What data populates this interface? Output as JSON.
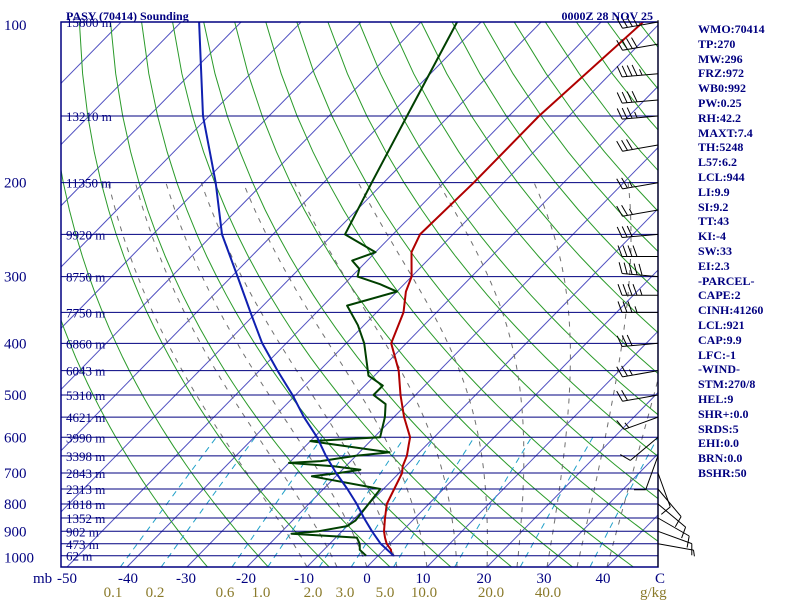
{
  "chart_data": {
    "type": "skew-t log-p sounding",
    "title": "PASY (70414) Sounding",
    "datetime": "0000Z 28 NOV 25",
    "ylabel": "mb",
    "xlabel_mixing": "g/kg",
    "pressure_ticks": [
      "100",
      "200",
      "300",
      "400",
      "500",
      "600",
      "700",
      "800",
      "900",
      "1000"
    ],
    "temperature_ticks": [
      "-50",
      "-40",
      "-30",
      "-20",
      "-10",
      "0",
      "10",
      "20",
      "30",
      "40",
      "C"
    ],
    "mixing_ratio_ticks": [
      "0.1",
      "0.2",
      "0.6",
      "1.0",
      "2.0",
      "3.0",
      "5.0",
      "10.0",
      "20.0",
      "40.0"
    ],
    "height_labels": [
      {
        "p": 100,
        "label": "15800 m"
      },
      {
        "p": 150,
        "label": "13210 m"
      },
      {
        "p": 200,
        "label": "11350 m"
      },
      {
        "p": 250,
        "label": "9920 m"
      },
      {
        "p": 300,
        "label": "8750 m"
      },
      {
        "p": 350,
        "label": "7750 m"
      },
      {
        "p": 400,
        "label": "6860 m"
      },
      {
        "p": 450,
        "label": "6043 m"
      },
      {
        "p": 500,
        "label": "5310 m"
      },
      {
        "p": 550,
        "label": "4621 m"
      },
      {
        "p": 600,
        "label": "3990 m"
      },
      {
        "p": 650,
        "label": "3398 m"
      },
      {
        "p": 700,
        "label": "2843 m"
      },
      {
        "p": 750,
        "label": "2313 m"
      },
      {
        "p": 800,
        "label": "1818 m"
      },
      {
        "p": 850,
        "label": "1352 m"
      },
      {
        "p": 900,
        "label": "902 m"
      },
      {
        "p": 950,
        "label": "473 m"
      },
      {
        "p": 1000,
        "label": "62 m"
      }
    ],
    "series": [
      {
        "name": "Temperature",
        "color": "#b00000",
        "points": [
          [
            1000,
            2.6
          ],
          [
            990,
            1.8
          ],
          [
            975,
            1.2
          ],
          [
            950,
            -0.5
          ],
          [
            925,
            -1.8
          ],
          [
            900,
            -3.0
          ],
          [
            850,
            -5.0
          ],
          [
            800,
            -7.0
          ],
          [
            750,
            -8.2
          ],
          [
            700,
            -9.5
          ],
          [
            680,
            -10.5
          ],
          [
            650,
            -11.5
          ],
          [
            620,
            -13.0
          ],
          [
            600,
            -14.0
          ],
          [
            550,
            -18.3
          ],
          [
            500,
            -22.5
          ],
          [
            450,
            -26.8
          ],
          [
            400,
            -32.5
          ],
          [
            350,
            -35.5
          ],
          [
            320,
            -38.5
          ],
          [
            300,
            -40.0
          ],
          [
            270,
            -44.0
          ],
          [
            250,
            -45.5
          ],
          [
            200,
            -45.0
          ],
          [
            150,
            -45.0
          ],
          [
            100,
            -43.0
          ]
        ]
      },
      {
        "name": "Dewpoint",
        "color": "#004000",
        "points": [
          [
            1000,
            -2.0
          ],
          [
            975,
            -4.0
          ],
          [
            950,
            -5.0
          ],
          [
            925,
            -6.5
          ],
          [
            910,
            -18.0
          ],
          [
            900,
            -14.0
          ],
          [
            880,
            -10.0
          ],
          [
            860,
            -9.5
          ],
          [
            750,
            -10.5
          ],
          [
            710,
            -24.0
          ],
          [
            700,
            -20.0
          ],
          [
            690,
            -17.0
          ],
          [
            680,
            -22.0
          ],
          [
            670,
            -30.0
          ],
          [
            665,
            -25.0
          ],
          [
            650,
            -20.0
          ],
          [
            640,
            -15.0
          ],
          [
            620,
            -25.0
          ],
          [
            610,
            -30.0
          ],
          [
            600,
            -19.0
          ],
          [
            550,
            -21.5
          ],
          [
            520,
            -23.5
          ],
          [
            500,
            -27.0
          ],
          [
            480,
            -27.0
          ],
          [
            460,
            -31.0
          ],
          [
            400,
            -37.0
          ],
          [
            370,
            -41.0
          ],
          [
            340,
            -46.0
          ],
          [
            320,
            -40.0
          ],
          [
            310,
            -44.0
          ],
          [
            300,
            -49.0
          ],
          [
            290,
            -50.0
          ],
          [
            280,
            -52.5
          ],
          [
            270,
            -50.0
          ],
          [
            250,
            -58.0
          ],
          [
            200,
            -62.0
          ],
          [
            150,
            -67.0
          ],
          [
            100,
            -74.0
          ]
        ]
      },
      {
        "name": "Parcel",
        "color": "#1020b0",
        "points": [
          [
            1000,
            2.6
          ],
          [
            950,
            -1.5
          ],
          [
            900,
            -5.0
          ],
          [
            850,
            -8.5
          ],
          [
            800,
            -12.0
          ],
          [
            750,
            -16.0
          ],
          [
            700,
            -20.5
          ],
          [
            650,
            -25.0
          ],
          [
            600,
            -29.5
          ],
          [
            550,
            -35.0
          ],
          [
            500,
            -40.5
          ],
          [
            450,
            -47.0
          ],
          [
            400,
            -54.0
          ],
          [
            350,
            -61.0
          ],
          [
            300,
            -69.0
          ],
          [
            250,
            -78.5
          ],
          [
            200,
            -88.0
          ],
          [
            150,
            -101.0
          ],
          [
            100,
            -117.0
          ]
        ]
      }
    ],
    "wind_barbs": [
      {
        "p": 100,
        "dir": 260,
        "kt": 35
      },
      {
        "p": 110,
        "dir": 260,
        "kt": 40
      },
      {
        "p": 125,
        "dir": 265,
        "kt": 45
      },
      {
        "p": 140,
        "dir": 265,
        "kt": 40
      },
      {
        "p": 150,
        "dir": 265,
        "kt": 35
      },
      {
        "p": 170,
        "dir": 260,
        "kt": 30
      },
      {
        "p": 200,
        "dir": 260,
        "kt": 25
      },
      {
        "p": 225,
        "dir": 260,
        "kt": 25
      },
      {
        "p": 250,
        "dir": 265,
        "kt": 30
      },
      {
        "p": 275,
        "dir": 270,
        "kt": 40
      },
      {
        "p": 300,
        "dir": 275,
        "kt": 50
      },
      {
        "p": 325,
        "dir": 270,
        "kt": 45
      },
      {
        "p": 350,
        "dir": 270,
        "kt": 35
      },
      {
        "p": 400,
        "dir": 265,
        "kt": 30
      },
      {
        "p": 450,
        "dir": 260,
        "kt": 25
      },
      {
        "p": 500,
        "dir": 260,
        "kt": 20
      },
      {
        "p": 550,
        "dir": 250,
        "kt": 15
      },
      {
        "p": 600,
        "dir": 230,
        "kt": 10
      },
      {
        "p": 650,
        "dir": 200,
        "kt": 10
      },
      {
        "p": 700,
        "dir": 160,
        "kt": 10
      },
      {
        "p": 750,
        "dir": 140,
        "kt": 10
      },
      {
        "p": 800,
        "dir": 130,
        "kt": 10
      },
      {
        "p": 850,
        "dir": 120,
        "kt": 10
      },
      {
        "p": 900,
        "dir": 110,
        "kt": 10
      },
      {
        "p": 950,
        "dir": 100,
        "kt": 5
      }
    ],
    "indices": [
      "WMO:70414",
      "TP:270",
      "MW:296",
      "FRZ:972",
      "WB0:992",
      "PW:0.25",
      "RH:42.2",
      "MAXT:7.4",
      "TH:5248",
      "L57:6.2",
      "LCL:944",
      "LI:9.9",
      "SI:9.2",
      "TT:43",
      "KI:-4",
      "SW:33",
      "EI:2.3",
      "-PARCEL-",
      "CAPE:2",
      "CINH:41260",
      "LCL:921",
      "CAP:9.9",
      "LFC:-1",
      "-WIND-",
      "STM:270/8",
      "HEL:9",
      "SHR+:0.0",
      "SRDS:5",
      "EHI:0.0",
      "BRN:0.0",
      "BSHR:50"
    ],
    "colors": {
      "isobar": "#000080",
      "isotherm": "#5050c0",
      "dry_adiabat": "#2a9a2a",
      "moist_adiabat": "#707070",
      "mixing_ratio": "#20a0c8",
      "temperature": "#b00000",
      "dewpoint": "#004000",
      "parcel": "#1020b0",
      "text": "#000080",
      "mixing_label": "#8a7a2a"
    }
  }
}
